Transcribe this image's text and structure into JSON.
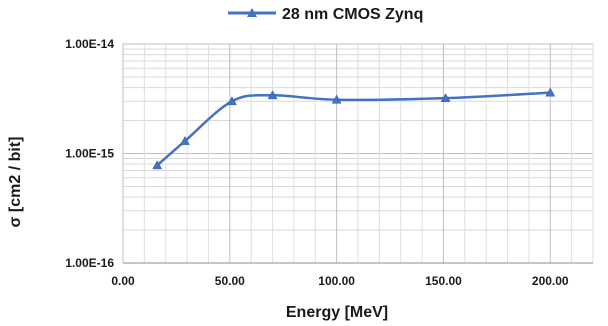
{
  "chart_data": {
    "type": "line",
    "x_scale": "linear",
    "y_scale": "log",
    "xlim": [
      0,
      220
    ],
    "ylim": [
      1e-16,
      1e-14
    ],
    "x_ticks": [
      "0.00",
      "50.00",
      "100.00",
      "150.00",
      "200.00"
    ],
    "x_tick_values": [
      0,
      50,
      100,
      150,
      200
    ],
    "y_ticks": [
      "1.00E-16",
      "1.00E-15",
      "1.00E-14"
    ],
    "y_tick_values": [
      1e-16,
      1e-15,
      1e-14
    ],
    "xlabel": "Energy [MeV]",
    "ylabel": "σ [cm2 / bit]",
    "grid": true,
    "legend_position": "top",
    "series": [
      {
        "name": "28 nm CMOS Zynq",
        "color": "#4472C4",
        "marker": "triangle",
        "smooth": true,
        "points": [
          {
            "x": 16,
            "y": 7.8e-16
          },
          {
            "x": 29,
            "y": 1.3e-15
          },
          {
            "x": 51,
            "y": 3e-15
          },
          {
            "x": 70,
            "y": 3.4e-15
          },
          {
            "x": 100,
            "y": 3.1e-15
          },
          {
            "x": 151,
            "y": 3.2e-15
          },
          {
            "x": 200,
            "y": 3.6e-15
          }
        ]
      }
    ]
  }
}
